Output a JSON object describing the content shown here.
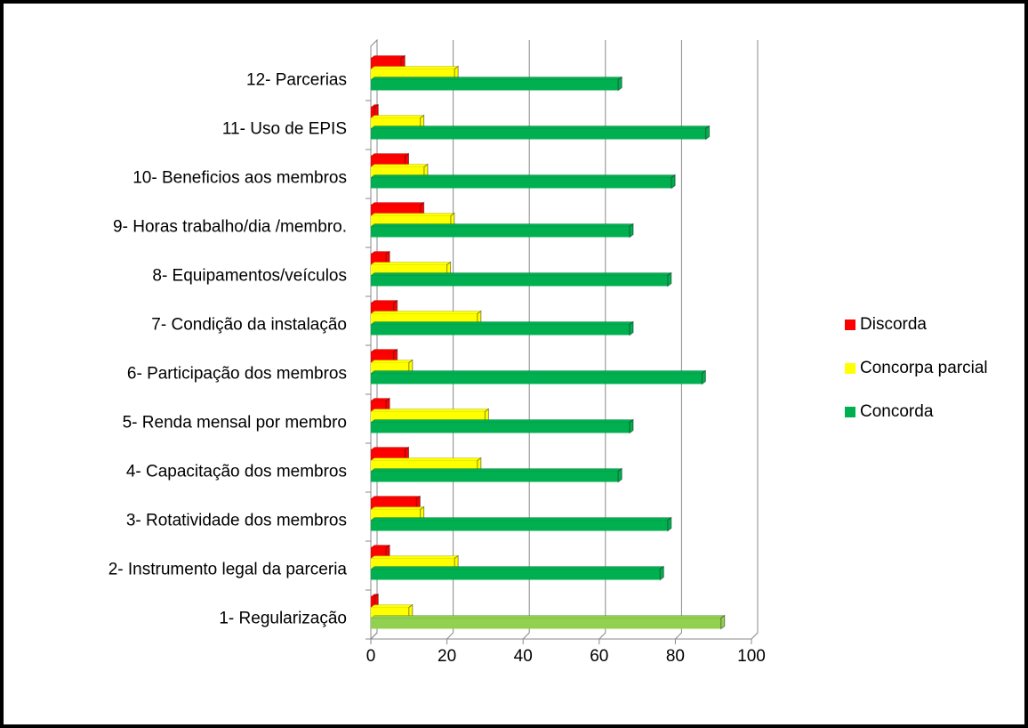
{
  "chart_data": {
    "type": "bar",
    "orientation": "horizontal",
    "categories": [
      "1- Regularização",
      "2- Instrumento legal da parceria",
      "3- Rotatividade dos  membros",
      "4- Capacitação dos membros",
      "5- Renda mensal por membro",
      "6- Participação dos membros",
      "7- Condição da instalação",
      "8- Equipamentos/veículos",
      "9- Horas trabalho/dia /membro.",
      "10- Beneficios aos membros",
      "11- Uso de EPIS",
      "12- Parcerias"
    ],
    "series": [
      {
        "name": "Discorda",
        "color": "#ff0000",
        "values": [
          1,
          4,
          12,
          9,
          4,
          6,
          6,
          4,
          13,
          9,
          1,
          8
        ]
      },
      {
        "name": "Concorpa parcial",
        "color": "#ffff00",
        "values": [
          10,
          22,
          13,
          28,
          30,
          10,
          28,
          20,
          21,
          14,
          13,
          22
        ]
      },
      {
        "name": "Concorda",
        "color": "#00b050",
        "colors": [
          "#92d050",
          "#00b050",
          "#00b050",
          "#00b050",
          "#00b050",
          "#00b050",
          "#00b050",
          "#00b050",
          "#00b050",
          "#00b050",
          "#00b050",
          "#00b050"
        ],
        "values": [
          92,
          76,
          78,
          65,
          68,
          87,
          68,
          78,
          68,
          79,
          88,
          65
        ]
      }
    ],
    "xlim": [
      0,
      100
    ],
    "xticks": [
      0,
      20,
      40,
      60,
      80,
      100
    ],
    "grid": true,
    "legend": "right"
  }
}
